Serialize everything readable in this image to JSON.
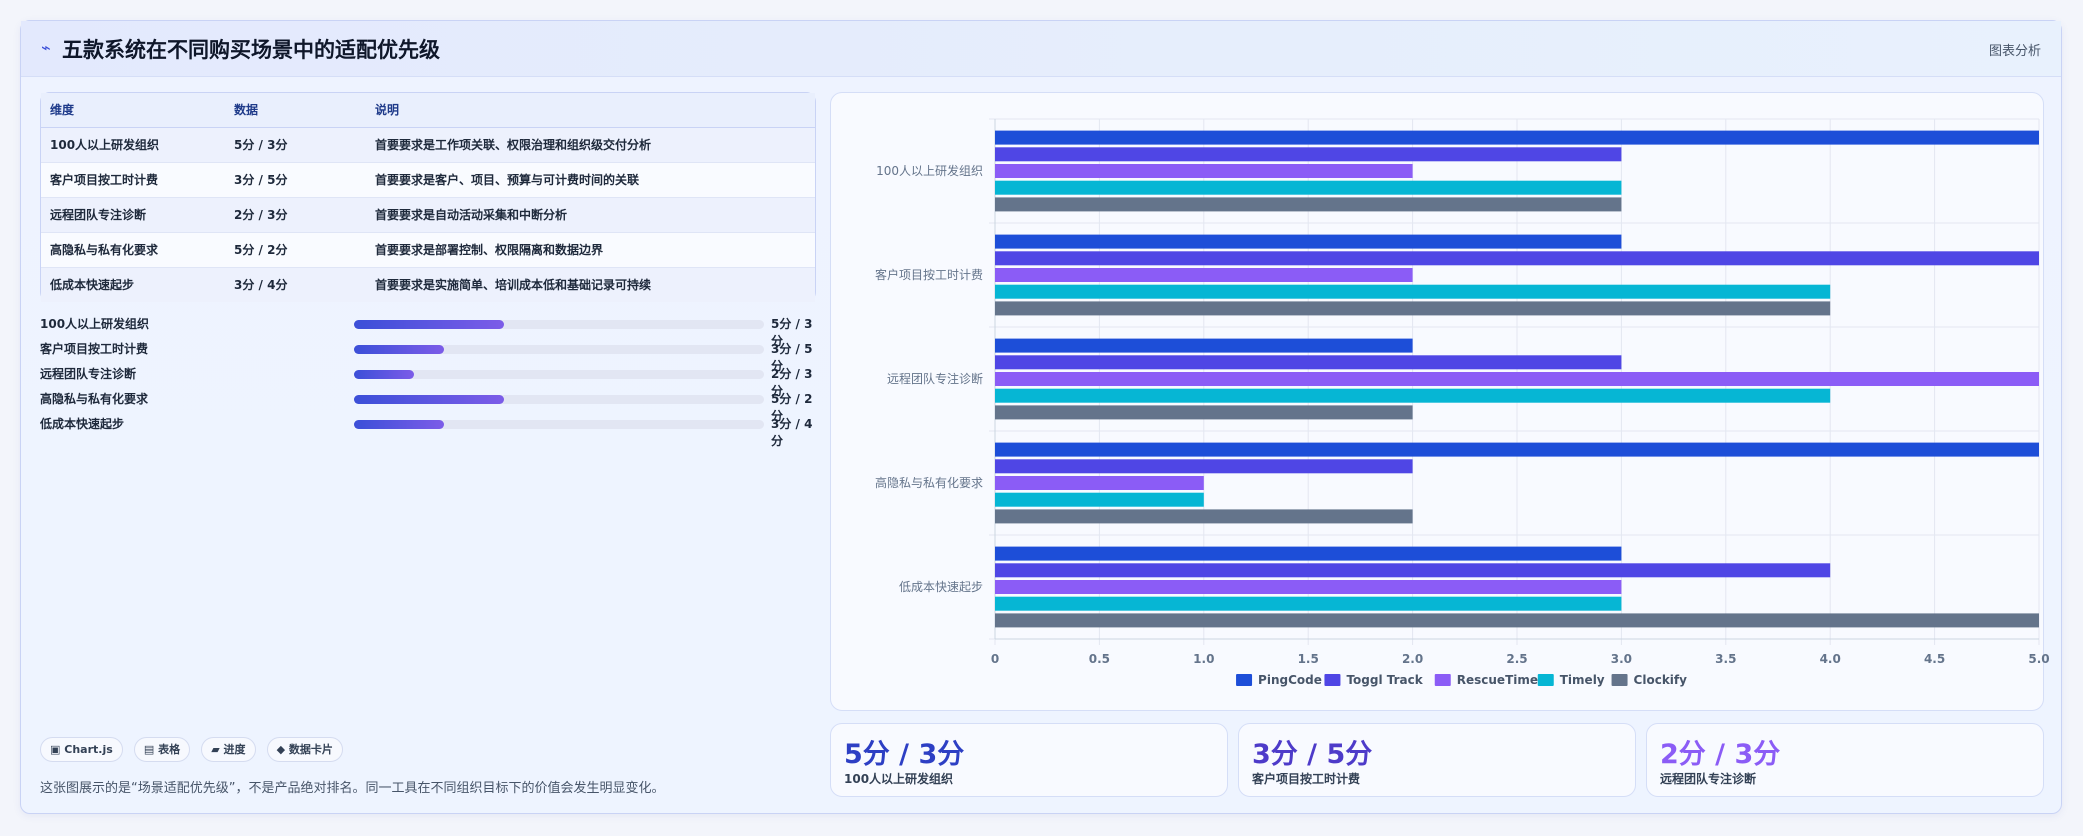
{
  "header": {
    "icon": "trend-icon",
    "title": "五款系统在不同购买场景中的适配优先级",
    "tag": "图表分析"
  },
  "table": {
    "columns": [
      "维度",
      "数据",
      "说明"
    ],
    "rows": [
      [
        "100人以上研发组织",
        "5分 / 3分",
        "首要要求是工作项关联、权限治理和组织级交付分析"
      ],
      [
        "客户项目按工时计费",
        "3分 / 5分",
        "首要要求是客户、项目、预算与可计费时间的关联"
      ],
      [
        "远程团队专注诊断",
        "2分 / 3分",
        "首要要求是自动活动采集和中断分析"
      ],
      [
        "高隐私与私有化要求",
        "5分 / 2分",
        "首要要求是部署控制、权限隔离和数据边界"
      ],
      [
        "低成本快速起步",
        "3分 / 4分",
        "首要要求是实施简单、培训成本低和基础记录可持续"
      ]
    ]
  },
  "progress": [
    {
      "label": "100人以上研发组织",
      "value": "5分 / 3分",
      "fraction": 0.367
    },
    {
      "label": "客户项目按工时计费",
      "value": "3分 / 5分",
      "fraction": 0.22
    },
    {
      "label": "远程团队专注诊断",
      "value": "2分 / 3分",
      "fraction": 0.147
    },
    {
      "label": "高隐私与私有化要求",
      "value": "5分 / 2分",
      "fraction": 0.367
    },
    {
      "label": "低成本快速起步",
      "value": "3分 / 4分",
      "fraction": 0.22
    }
  ],
  "chips": [
    {
      "icon": "▣",
      "label": "Chart.js"
    },
    {
      "icon": "▤",
      "label": "表格"
    },
    {
      "icon": "▰",
      "label": "进度"
    },
    {
      "icon": "◆",
      "label": "数据卡片"
    }
  ],
  "note": "这张图展示的是“场景适配优先级”，不是产品绝对排名。同一工具在不同组织目标下的价值会发生明显变化。",
  "kpis": [
    {
      "value": "5分 / 3分",
      "label": "100人以上研发组织",
      "color": "#2d3fc4"
    },
    {
      "value": "3分 / 5分",
      "label": "客户项目按工时计费",
      "color": "#4d3bc9"
    },
    {
      "value": "2分 / 3分",
      "label": "远程团队专注诊断",
      "color": "#8b5cf6"
    }
  ],
  "chart_data": {
    "type": "bar",
    "orientation": "horizontal",
    "categories": [
      "100人以上研发组织",
      "客户项目按工时计费",
      "远程团队专注诊断",
      "高隐私与私有化要求",
      "低成本快速起步"
    ],
    "series": [
      {
        "name": "PingCode",
        "color": "#1d4ed8",
        "values": [
          5,
          3,
          2,
          5,
          3
        ]
      },
      {
        "name": "Toggl Track",
        "color": "#4f46e5",
        "values": [
          3,
          5,
          3,
          2,
          4
        ]
      },
      {
        "name": "RescueTime",
        "color": "#8b5cf6",
        "values": [
          2,
          2,
          5,
          1,
          3
        ]
      },
      {
        "name": "Timely",
        "color": "#06b6d4",
        "values": [
          3,
          4,
          4,
          1,
          3
        ]
      },
      {
        "name": "Clockify",
        "color": "#64748b",
        "values": [
          3,
          4,
          2,
          2,
          5
        ]
      }
    ],
    "xlim": [
      0,
      5
    ],
    "xticks": [
      "0",
      "0.5",
      "1.0",
      "1.5",
      "2.0",
      "2.5",
      "3.0",
      "3.5",
      "4.0",
      "4.5",
      "5.0"
    ],
    "grid": true,
    "legend": "bottom"
  }
}
